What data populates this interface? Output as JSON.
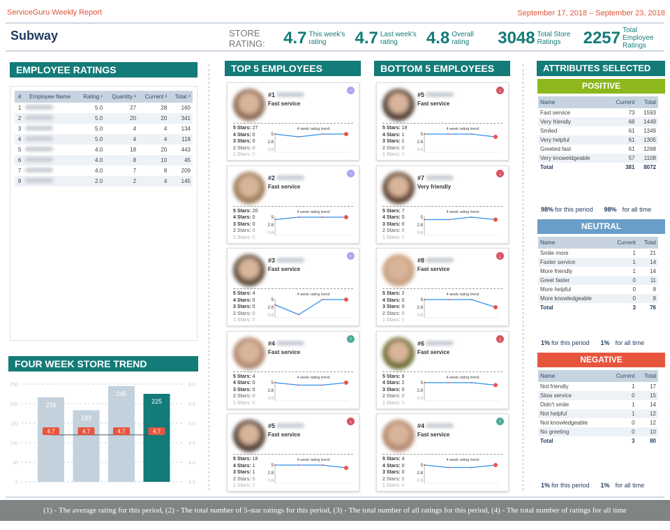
{
  "header": {
    "brand": "ServiceGuru Weekly Report",
    "date_range": "September 17, 2018 – September 23, 2018",
    "store": "Subway",
    "store_rating_label": "STORE RATING:",
    "stats": [
      {
        "value": "4.7",
        "label": "This week's rating"
      },
      {
        "value": "4.7",
        "label": "Last week's rating"
      },
      {
        "value": "4.8",
        "label": "Overall rating"
      },
      {
        "value": "3048",
        "label": "Total Store Ratings"
      },
      {
        "value": "2257",
        "label": "Total Employee Ratings"
      }
    ]
  },
  "employee_ratings": {
    "title": "EMPLOYEE RATINGS",
    "columns": [
      "#",
      "Employee Name",
      "Rating ¹",
      "Quantity ²",
      "Current ³",
      "Total ⁴"
    ],
    "rows": [
      [
        "1",
        "",
        "5.0",
        "27",
        "28",
        "160"
      ],
      [
        "2",
        "",
        "5.0",
        "20",
        "20",
        "341"
      ],
      [
        "3",
        "",
        "5.0",
        "4",
        "4",
        "134"
      ],
      [
        "4",
        "",
        "5.0",
        "4",
        "4",
        "118"
      ],
      [
        "5",
        "",
        "4.0",
        "18",
        "20",
        "443"
      ],
      [
        "6",
        "",
        "4.0",
        "8",
        "10",
        "45"
      ],
      [
        "7",
        "",
        "4.0",
        "7",
        "8",
        "209"
      ],
      [
        "8",
        "",
        "2.0",
        "2",
        "4",
        "145"
      ]
    ]
  },
  "trend": {
    "title": "FOUR WEEK STORE TREND"
  },
  "chart_data": {
    "type": "bar",
    "title": "FOUR WEEK STORE TREND",
    "categories": [
      "Week 1",
      "Week 2",
      "Week 3",
      "Week 4"
    ],
    "series": [
      {
        "values": [
          216,
          183,
          245,
          225
        ],
        "axis": "left"
      },
      {
        "values": [
          4.7,
          4.7,
          4.7,
          4.7
        ],
        "axis": "right",
        "type": "line"
      }
    ],
    "ylim": [
      0,
      250
    ],
    "yticks": [
      0,
      50,
      100,
      150,
      200,
      250
    ],
    "y2lim": [
      3.5,
      6.0
    ],
    "y2ticks": [
      "3.5",
      "4.0",
      "4.5",
      "5.0",
      "5.5",
      "6.0"
    ],
    "grid": true,
    "bar_colors": [
      "#c3d1dd",
      "#c3d1dd",
      "#c3d1dd",
      "#137b78"
    ],
    "label_color": "#e8553e"
  },
  "top5": {
    "title": "TOP 5 EMPLOYEES",
    "cards": [
      {
        "rank": "#1",
        "attr": "Fast service",
        "stars": [
          "27",
          "0",
          "0",
          "0",
          "0"
        ],
        "trend": [
          5,
          4.2,
          5,
          5
        ],
        "change": "neutral",
        "photo": "#8a6a55"
      },
      {
        "rank": "#2",
        "attr": "Fast service",
        "stars": [
          "20",
          "0",
          "0",
          "0",
          "0"
        ],
        "trend": [
          4.3,
          5,
          5,
          5
        ],
        "change": "neutral",
        "photo": "#9a7a5a"
      },
      {
        "rank": "#3",
        "attr": "Fast service",
        "stars": [
          "4",
          "0",
          "0",
          "0",
          "0"
        ],
        "trend": [
          3.5,
          0.7,
          5,
          5
        ],
        "change": "neutral",
        "photo": "#5a4a3a"
      },
      {
        "rank": "#4",
        "attr": "Fast service",
        "stars": [
          "4",
          "0",
          "0",
          "0",
          "0"
        ],
        "trend": [
          5,
          4.3,
          4.3,
          5
        ],
        "change": "up",
        "photo": "#b08870"
      },
      {
        "rank": "#5",
        "attr": "Fast service",
        "stars": [
          "18",
          "1",
          "1",
          "0",
          "0"
        ],
        "trend": [
          5,
          5,
          5,
          4.2
        ],
        "change": "down",
        "photo": "#4a3a30"
      }
    ]
  },
  "bottom5": {
    "title": "BOTTOM 5 EMPLOYEES",
    "cards": [
      {
        "rank": "#5",
        "attr": "Fast service",
        "stars": [
          "18",
          "1",
          "1",
          "0",
          "0"
        ],
        "trend": [
          5,
          5,
          5,
          4.2
        ],
        "change": "down",
        "photo": "#4a3a30"
      },
      {
        "rank": "#7",
        "attr": "Very friendly",
        "stars": [
          "7",
          "0",
          "0",
          "0",
          "0"
        ],
        "trend": [
          4.3,
          4.3,
          5,
          4.3
        ],
        "change": "down",
        "photo": "#5a4030"
      },
      {
        "rank": "#8",
        "attr": "Fast service",
        "stars": [
          "2",
          "0",
          "0",
          "0",
          "0"
        ],
        "trend": [
          5,
          5,
          5,
          2.8
        ],
        "change": "down",
        "photo": "#c8a080"
      },
      {
        "rank": "#6",
        "attr": "Fast service",
        "stars": [
          "8",
          "2",
          "0",
          "0",
          "0"
        ],
        "trend": [
          5,
          5,
          5,
          4.3
        ],
        "change": "down",
        "photo": "#6a6a30"
      },
      {
        "rank": "#4",
        "attr": "Fast service",
        "stars": [
          "4",
          "0",
          "0",
          "0",
          "0"
        ],
        "trend": [
          5,
          4.3,
          4.3,
          5
        ],
        "change": "up",
        "photo": "#b08870"
      }
    ]
  },
  "card_labels": {
    "stars": [
      "5 Stars:",
      "4 Stars:",
      "3 Stars:",
      "2 Stars:",
      "1 Stars:"
    ],
    "trend_title": "4 week rating trend",
    "yticks": [
      "5",
      "2.8",
      "0.6"
    ]
  },
  "attributes": {
    "title": "ATTRIBUTES SELECTED",
    "columns": [
      "Name",
      "Current",
      "Total"
    ],
    "total_label": "Total",
    "period_label": "for this period",
    "all_label": "for all time",
    "groups": [
      {
        "title": "POSITIVE",
        "color": "#8cb81c",
        "rows": [
          [
            "Fast service",
            "73",
            "1593"
          ],
          [
            "Very friendly",
            "68",
            "1449"
          ],
          [
            "Smiled",
            "61",
            "1349"
          ],
          [
            "Very helpful",
            "61",
            "1305"
          ],
          [
            "Greeted fast",
            "61",
            "1268"
          ],
          [
            "Very knoweldgeable",
            "57",
            "1108"
          ]
        ],
        "total": [
          "381",
          "8072"
        ],
        "pct_period": "98%",
        "pct_all": "98%"
      },
      {
        "title": "NEUTRAL",
        "color": "#6a9ec8",
        "rows": [
          [
            "Smile more",
            "1",
            "21"
          ],
          [
            "Faster service",
            "1",
            "14"
          ],
          [
            "More friendly",
            "1",
            "14"
          ],
          [
            "Greet faster",
            "0",
            "11"
          ],
          [
            "More helpful",
            "0",
            "8"
          ],
          [
            "More knowledgeable",
            "0",
            "8"
          ]
        ],
        "total": [
          "3",
          "76"
        ],
        "pct_period": "1%",
        "pct_all": "1%"
      },
      {
        "title": "NEGATIVE",
        "color": "#e8553e",
        "rows": [
          [
            "Not friendly",
            "1",
            "17"
          ],
          [
            "Slow service",
            "0",
            "15"
          ],
          [
            "Didn't smile",
            "1",
            "14"
          ],
          [
            "Not helpful",
            "1",
            "12"
          ],
          [
            "Not knowledgeable",
            "0",
            "12"
          ],
          [
            "No greeting",
            "0",
            "10"
          ]
        ],
        "total": [
          "3",
          "80"
        ],
        "pct_period": "1%",
        "pct_all": "1%"
      }
    ]
  },
  "footer": "(1) - The average rating for this period, (2) - The total number of 5-star ratings for this period, (3) - The total number of all ratings for this period, (4) - The total number of ratings for all time"
}
